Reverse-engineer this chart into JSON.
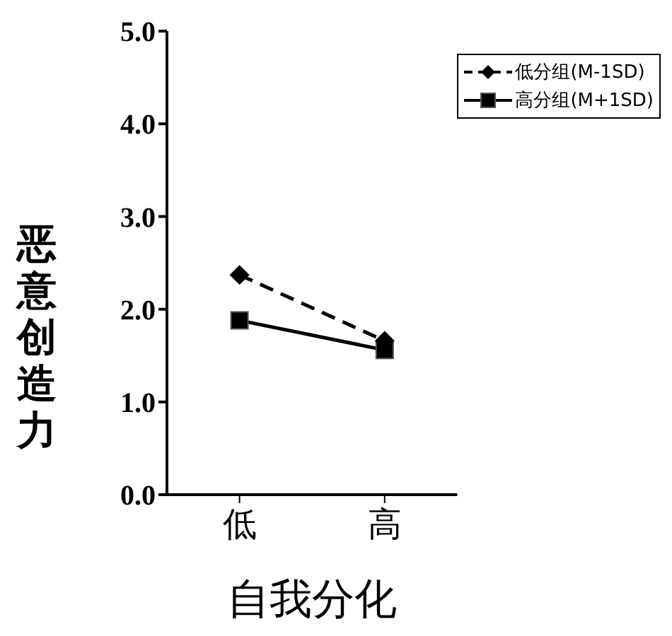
{
  "chart_data": {
    "type": "line",
    "xlabel": "自我分化",
    "ylabel": "恶意创造力",
    "categories": [
      "低",
      "高"
    ],
    "series": [
      {
        "name": "低分组(M-1SD)",
        "color": "#000000",
        "values": [
          2.37,
          1.66
        ],
        "marker": "diamond",
        "line_style": "dashed"
      },
      {
        "name": "高分组(M+1SD)",
        "color": "#000000",
        "values": [
          1.88,
          1.56
        ],
        "marker": "square",
        "line_style": "solid"
      }
    ],
    "ylim": [
      0,
      5
    ],
    "yticks": [
      {
        "value": 0,
        "label": "0.0"
      },
      {
        "value": 1,
        "label": "1.0"
      },
      {
        "value": 2,
        "label": "2.0"
      },
      {
        "value": 3,
        "label": "3.0"
      },
      {
        "value": 4,
        "label": "4.0"
      },
      {
        "value": 5,
        "label": "5.0"
      }
    ],
    "grid": false,
    "legend": "top right"
  }
}
